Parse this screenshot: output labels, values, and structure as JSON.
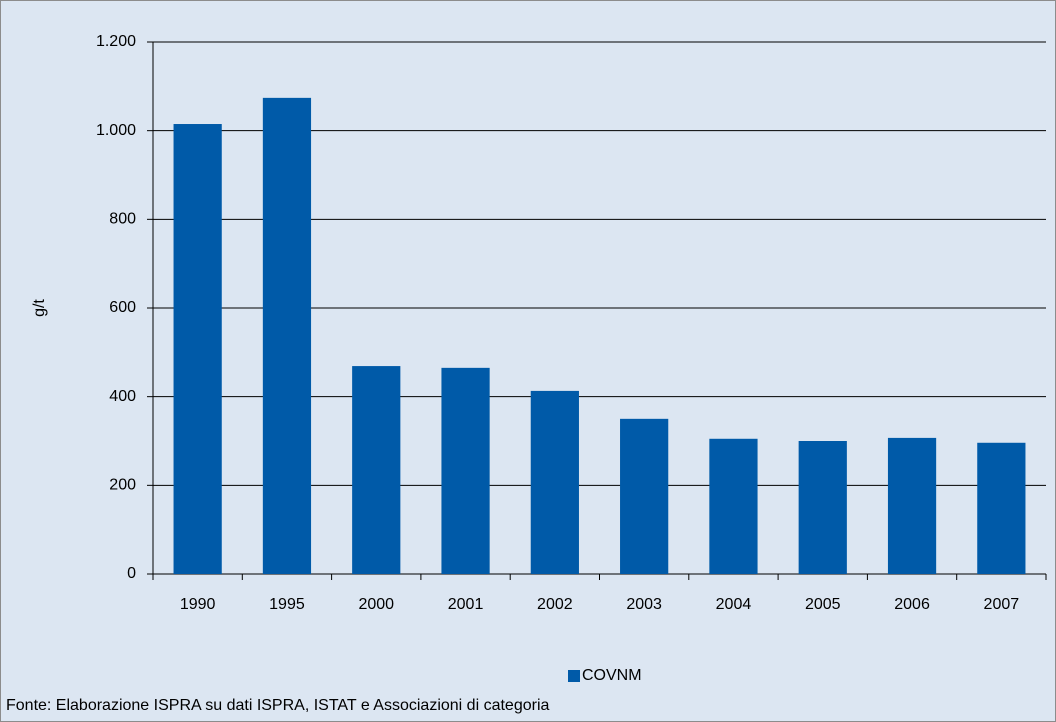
{
  "chart_data": {
    "type": "bar",
    "y_label": "g/t",
    "categories": [
      "1990",
      "1995",
      "2000",
      "2001",
      "2002",
      "2003",
      "2004",
      "2005",
      "2006",
      "2007"
    ],
    "series": [
      {
        "name": "COVNM",
        "color": "#005aa8",
        "values": [
          1015,
          1074,
          469,
          465,
          413,
          350,
          305,
          300,
          307,
          296
        ]
      }
    ],
    "ylim": [
      0,
      1200
    ],
    "yticks": [
      0,
      200,
      400,
      600,
      800,
      {
        "value": 1000,
        "label": "1.000"
      },
      {
        "value": 1200,
        "label": "1.200"
      }
    ],
    "grid": true,
    "legend": "bottom",
    "source": "Fonte: Elaborazione ISPRA su dati ISPRA, ISTAT e Associazioni di categoria"
  }
}
